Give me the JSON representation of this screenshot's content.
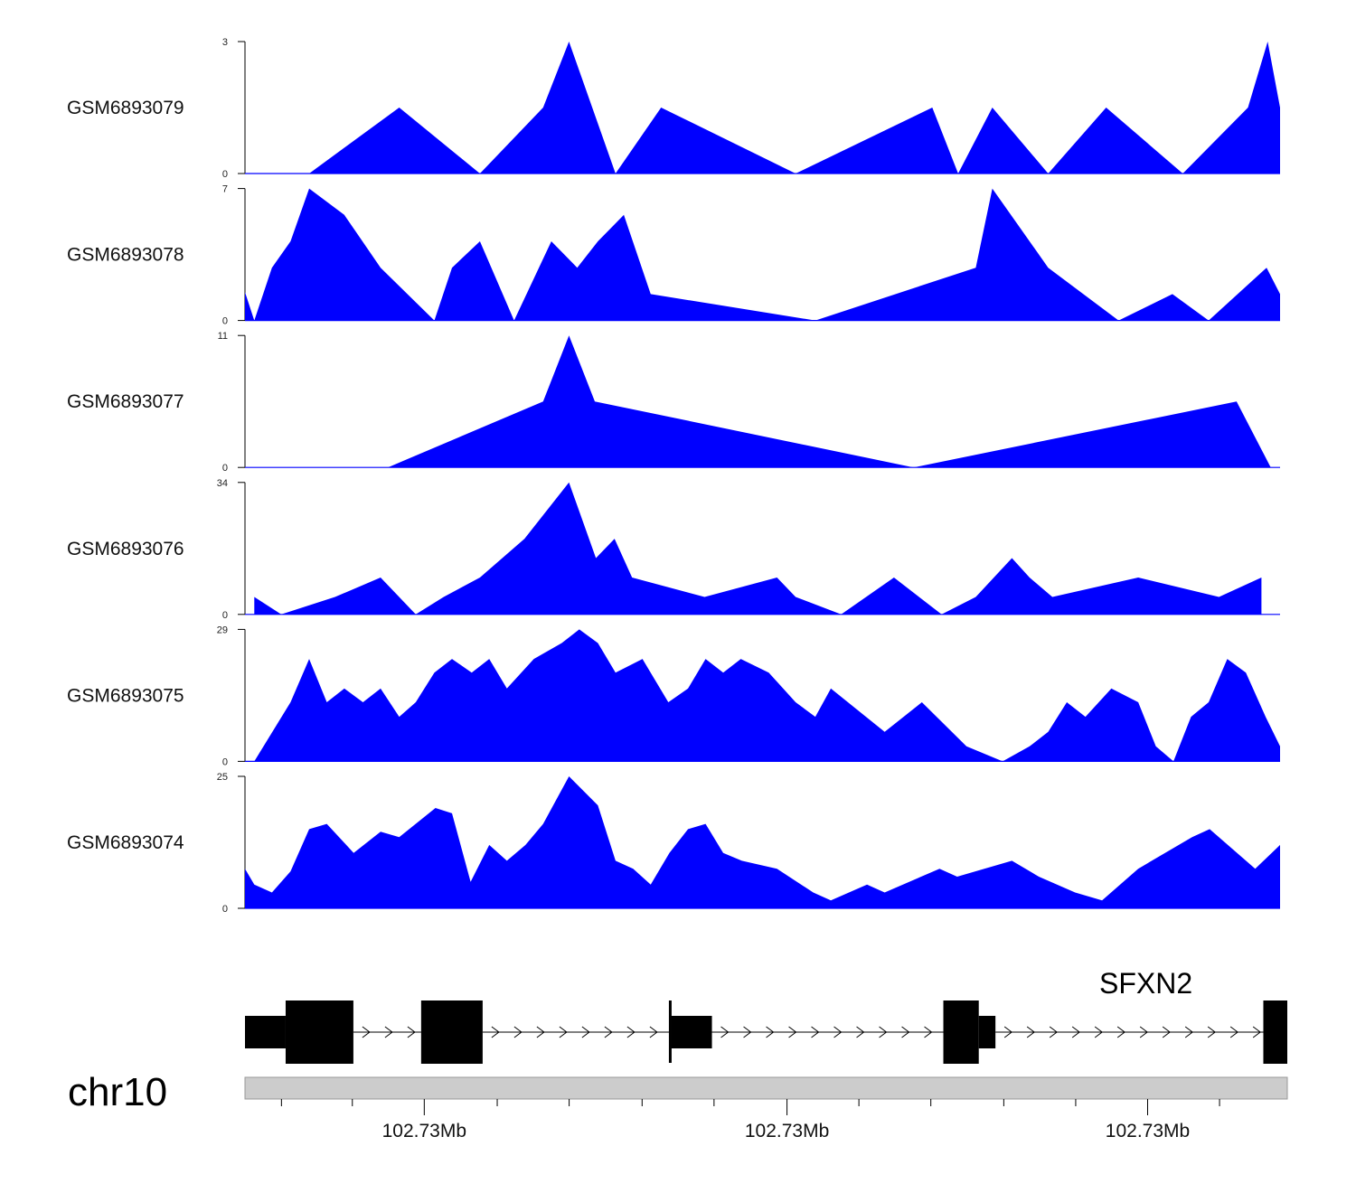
{
  "chart_data": {
    "type": "area",
    "title": "",
    "chromosome": "chr10",
    "fill_color": "#0000FF",
    "x_min": 0,
    "x_max": 1,
    "tracks": [
      {
        "name": "GSM6893079",
        "ylim": [
          0,
          3
        ],
        "y_tick_labels": [
          "0",
          "3"
        ],
        "points": [
          [
            0.062,
            0
          ],
          [
            0.149,
            1.5
          ],
          [
            0.227,
            0
          ],
          [
            0.288,
            1.5
          ],
          [
            0.313,
            3
          ],
          [
            0.358,
            0
          ],
          [
            0.402,
            1.5
          ],
          [
            0.532,
            0
          ],
          [
            0.664,
            1.5
          ],
          [
            0.689,
            0
          ],
          [
            0.722,
            1.5
          ],
          [
            0.776,
            0
          ],
          [
            0.832,
            1.5
          ],
          [
            0.906,
            0
          ],
          [
            0.969,
            1.5
          ],
          [
            0.988,
            3
          ],
          [
            1.0,
            1.5
          ]
        ]
      },
      {
        "name": "GSM6893078",
        "ylim": [
          0,
          7
        ],
        "y_tick_labels": [
          "0",
          "7"
        ],
        "points": [
          [
            0.0,
            1.5
          ],
          [
            0.009,
            0
          ],
          [
            0.026,
            2.8
          ],
          [
            0.044,
            4.2
          ],
          [
            0.062,
            7
          ],
          [
            0.096,
            5.6
          ],
          [
            0.131,
            2.8
          ],
          [
            0.183,
            0
          ],
          [
            0.2,
            2.8
          ],
          [
            0.227,
            4.2
          ],
          [
            0.26,
            0
          ],
          [
            0.296,
            4.2
          ],
          [
            0.321,
            2.8
          ],
          [
            0.341,
            4.2
          ],
          [
            0.366,
            5.6
          ],
          [
            0.392,
            1.4
          ],
          [
            0.551,
            0
          ],
          [
            0.706,
            2.8
          ],
          [
            0.722,
            7
          ],
          [
            0.776,
            2.8
          ],
          [
            0.844,
            0
          ],
          [
            0.896,
            1.4
          ],
          [
            0.931,
            0
          ],
          [
            0.987,
            2.8
          ],
          [
            1.0,
            1.4
          ]
        ]
      },
      {
        "name": "GSM6893077",
        "ylim": [
          0,
          11
        ],
        "y_tick_labels": [
          "0",
          "11"
        ],
        "points": [
          [
            0.138,
            0
          ],
          [
            0.288,
            5.5
          ],
          [
            0.313,
            11
          ],
          [
            0.338,
            5.5
          ],
          [
            0.646,
            0
          ],
          [
            0.958,
            5.5
          ],
          [
            0.991,
            0
          ]
        ]
      },
      {
        "name": "GSM6893076",
        "ylim": [
          0,
          34
        ],
        "y_tick_labels": [
          "0",
          "34"
        ],
        "points": [
          [
            0.009,
            4.5
          ],
          [
            0.035,
            0
          ],
          [
            0.087,
            4.5
          ],
          [
            0.131,
            9.5
          ],
          [
            0.165,
            0
          ],
          [
            0.192,
            4.5
          ],
          [
            0.227,
            9.5
          ],
          [
            0.27,
            19.5
          ],
          [
            0.313,
            34
          ],
          [
            0.339,
            14.5
          ],
          [
            0.357,
            19.5
          ],
          [
            0.374,
            9.5
          ],
          [
            0.444,
            4.5
          ],
          [
            0.514,
            9.5
          ],
          [
            0.532,
            4.5
          ],
          [
            0.576,
            0
          ],
          [
            0.627,
            9.5
          ],
          [
            0.673,
            0
          ],
          [
            0.706,
            4.5
          ],
          [
            0.741,
            14.5
          ],
          [
            0.758,
            9.5
          ],
          [
            0.78,
            4.5
          ],
          [
            0.863,
            9.5
          ],
          [
            0.941,
            4.5
          ],
          [
            0.982,
            9.5
          ],
          [
            0.982,
            0
          ]
        ]
      },
      {
        "name": "GSM6893075",
        "ylim": [
          0,
          29
        ],
        "y_tick_labels": [
          "0",
          "29"
        ],
        "points": [
          [
            0.009,
            0
          ],
          [
            0.044,
            13
          ],
          [
            0.062,
            22.5
          ],
          [
            0.079,
            13
          ],
          [
            0.096,
            16
          ],
          [
            0.114,
            13
          ],
          [
            0.131,
            16
          ],
          [
            0.149,
            9.8
          ],
          [
            0.165,
            13
          ],
          [
            0.183,
            19.5
          ],
          [
            0.2,
            22.5
          ],
          [
            0.219,
            19.5
          ],
          [
            0.236,
            22.5
          ],
          [
            0.253,
            16
          ],
          [
            0.279,
            22.5
          ],
          [
            0.306,
            26
          ],
          [
            0.323,
            29
          ],
          [
            0.341,
            26
          ],
          [
            0.358,
            19.5
          ],
          [
            0.384,
            22.5
          ],
          [
            0.409,
            13
          ],
          [
            0.428,
            16
          ],
          [
            0.445,
            22.5
          ],
          [
            0.462,
            19.5
          ],
          [
            0.479,
            22.5
          ],
          [
            0.506,
            19.5
          ],
          [
            0.532,
            13
          ],
          [
            0.551,
            9.8
          ],
          [
            0.566,
            16
          ],
          [
            0.618,
            6.5
          ],
          [
            0.654,
            13
          ],
          [
            0.697,
            3.3
          ],
          [
            0.732,
            0
          ],
          [
            0.758,
            3.3
          ],
          [
            0.776,
            6.5
          ],
          [
            0.794,
            13
          ],
          [
            0.812,
            9.8
          ],
          [
            0.837,
            16
          ],
          [
            0.863,
            13
          ],
          [
            0.88,
            3.3
          ],
          [
            0.897,
            0
          ],
          [
            0.914,
            9.8
          ],
          [
            0.931,
            13
          ],
          [
            0.949,
            22.5
          ],
          [
            0.967,
            19.5
          ],
          [
            0.986,
            9.8
          ],
          [
            1.0,
            3.3
          ]
        ]
      },
      {
        "name": "GSM6893074",
        "ylim": [
          0,
          25
        ],
        "y_tick_labels": [
          "0",
          "25"
        ],
        "points": [
          [
            0.0,
            7.5
          ],
          [
            0.009,
            4.5
          ],
          [
            0.026,
            3
          ],
          [
            0.044,
            7
          ],
          [
            0.062,
            15
          ],
          [
            0.079,
            16
          ],
          [
            0.105,
            10.5
          ],
          [
            0.131,
            14.5
          ],
          [
            0.149,
            13.5
          ],
          [
            0.184,
            19
          ],
          [
            0.2,
            18
          ],
          [
            0.218,
            5
          ],
          [
            0.236,
            12
          ],
          [
            0.253,
            9
          ],
          [
            0.271,
            12
          ],
          [
            0.288,
            16
          ],
          [
            0.313,
            25
          ],
          [
            0.341,
            19.5
          ],
          [
            0.358,
            9
          ],
          [
            0.375,
            7.5
          ],
          [
            0.392,
            4.5
          ],
          [
            0.41,
            10.5
          ],
          [
            0.428,
            15
          ],
          [
            0.445,
            16
          ],
          [
            0.462,
            10.5
          ],
          [
            0.48,
            9
          ],
          [
            0.514,
            7.5
          ],
          [
            0.549,
            3
          ],
          [
            0.566,
            1.5
          ],
          [
            0.601,
            4.5
          ],
          [
            0.618,
            3
          ],
          [
            0.671,
            7.5
          ],
          [
            0.688,
            6
          ],
          [
            0.741,
            9
          ],
          [
            0.767,
            6
          ],
          [
            0.802,
            3
          ],
          [
            0.828,
            1.5
          ],
          [
            0.863,
            7.5
          ],
          [
            0.915,
            13.5
          ],
          [
            0.932,
            15
          ],
          [
            0.976,
            7.5
          ],
          [
            1.0,
            12
          ]
        ]
      }
    ]
  },
  "gene_track": {
    "gene_name": "SFXN2",
    "strand": "+",
    "exons": [
      {
        "start": 0.0,
        "end": 0.039,
        "type": "utr"
      },
      {
        "start": 0.039,
        "end": 0.104,
        "type": "cds"
      },
      {
        "start": 0.169,
        "end": 0.228,
        "type": "cds"
      },
      {
        "start": 0.409,
        "end": 0.448,
        "type": "utr"
      },
      {
        "start": 0.67,
        "end": 0.704,
        "type": "cds"
      },
      {
        "start": 0.704,
        "end": 0.72,
        "type": "utr"
      },
      {
        "start": 0.977,
        "end": 1.0,
        "type": "cds"
      }
    ],
    "tss_at": 0.408,
    "introns": [
      [
        0.104,
        0.169
      ],
      [
        0.228,
        0.409
      ],
      [
        0.448,
        0.67
      ],
      [
        0.72,
        0.977
      ]
    ]
  },
  "genome_axis": {
    "tick_labels": [
      "102.73Mb",
      "102.73Mb",
      "102.73Mb"
    ],
    "labeled_ticks": [
      0.172,
      0.52,
      0.866
    ],
    "minor_ticks": [
      0.035,
      0.103,
      0.242,
      0.311,
      0.381,
      0.45,
      0.589,
      0.658,
      0.728,
      0.797,
      0.935
    ]
  }
}
